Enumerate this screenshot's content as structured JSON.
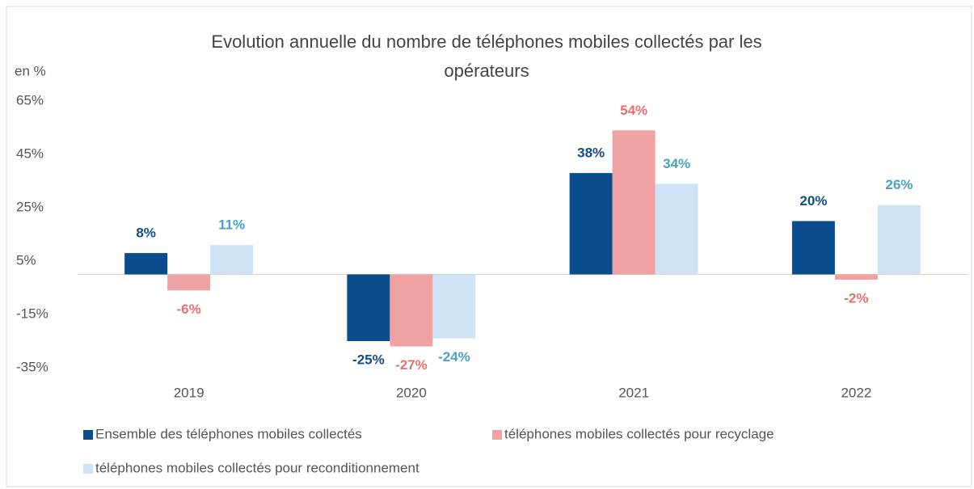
{
  "chart_data": {
    "type": "bar",
    "title": "Evolution annuelle du nombre de téléphones mobiles collectés par les opérateurs",
    "y_axis_label": "en %",
    "categories": [
      "2019",
      "2020",
      "2021",
      "2022"
    ],
    "series": [
      {
        "name": "Ensemble des téléphones mobiles collectés",
        "color": "#0b4c8c",
        "label_color": "#124c86",
        "values": [
          8,
          -25,
          38,
          20
        ],
        "value_labels": [
          "8%",
          "-25%",
          "38%",
          "20%"
        ]
      },
      {
        "name": "téléphones mobiles collectés pour recyclage",
        "color": "#f0a2a2",
        "label_color": "#e86f6f",
        "values": [
          -6,
          -27,
          54,
          -2
        ],
        "value_labels": [
          "-6%",
          "-27%",
          "54%",
          "-2%"
        ]
      },
      {
        "name": "téléphones mobiles collectés pour reconditionnement",
        "color": "#cfe3f7",
        "label_color": "#4aa2c2",
        "values": [
          11,
          -24,
          34,
          26
        ],
        "value_labels": [
          "11%",
          "-24%",
          "34%",
          "26%"
        ]
      }
    ],
    "ylim": [
      -35,
      65
    ],
    "yticks": [
      {
        "value": -35,
        "label": "-35%"
      },
      {
        "value": -15,
        "label": "-15%"
      },
      {
        "value": 5,
        "label": "5%"
      },
      {
        "value": 25,
        "label": "25%"
      },
      {
        "value": 45,
        "label": "45%"
      },
      {
        "value": 65,
        "label": "65%"
      }
    ],
    "grid": false,
    "legend": "bottom"
  }
}
